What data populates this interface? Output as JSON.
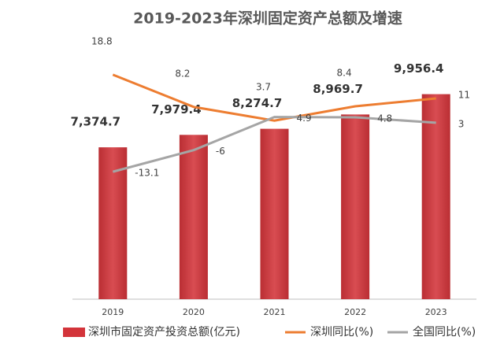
{
  "chart_data": {
    "type": "bar-line",
    "title": "2019-2023年深圳固定资产总额及增速",
    "categories": [
      "2019",
      "2020",
      "2021",
      "2022",
      "2023"
    ],
    "ylim": [
      0,
      13000
    ],
    "y2lim": [
      -55,
      33
    ],
    "series": [
      {
        "name": "深圳市固定资产投资总额(亿元)",
        "type": "bar",
        "color": "#d3343a",
        "values": [
          7374.7,
          7979.4,
          8274.7,
          8969.7,
          9956.4
        ],
        "value_labels": [
          "7,374.7",
          "7,979.4",
          "8,274.7",
          "8,969.7",
          "9,956.4"
        ]
      },
      {
        "name": "深圳同比(%)",
        "type": "line",
        "axis": "y2",
        "color": "#ed7d31",
        "values": [
          18.8,
          8.2,
          3.7,
          8.4,
          11
        ]
      },
      {
        "name": "全国同比(%)",
        "type": "line",
        "axis": "y2",
        "color": "#a5a5a5",
        "values": [
          -13.1,
          -6.0,
          4.9,
          4.8,
          3
        ]
      }
    ]
  }
}
